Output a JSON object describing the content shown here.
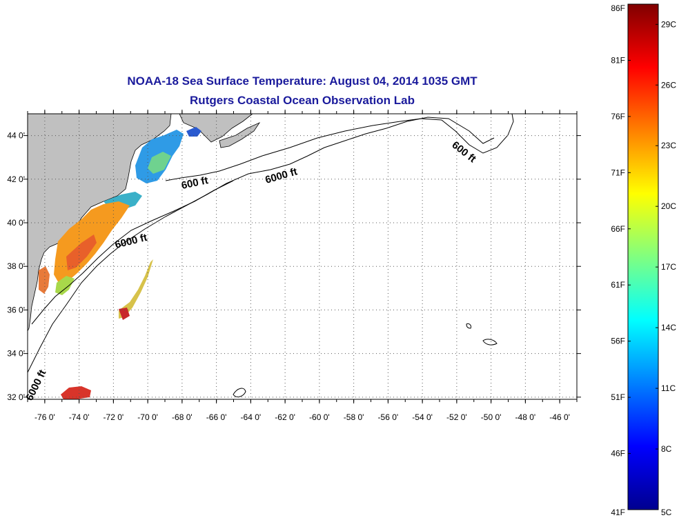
{
  "title": {
    "line1": "NOAA-18 Sea Surface Temperature:  August 04, 2014 1035 GMT",
    "line2": "Rutgers Coastal Ocean Observation Lab"
  },
  "map": {
    "lon_range": [
      -77,
      -45
    ],
    "lat_range": [
      31.9,
      45
    ],
    "lon_ticks": [
      -76,
      -74,
      -72,
      -70,
      -68,
      -66,
      -64,
      -62,
      -60,
      -58,
      -56,
      -54,
      -52,
      -50,
      -48,
      -46
    ],
    "lon_labels": [
      "-76 0'",
      "-74 0'",
      "-72 0'",
      "-70 0'",
      "-68 0'",
      "-66 0'",
      "-64 0'",
      "-62 0'",
      "-60 0'",
      "-58 0'",
      "-56 0'",
      "-54 0'",
      "-52 0'",
      "-50 0'",
      "-48 0'",
      "-46 0'"
    ],
    "lat_ticks": [
      32,
      34,
      36,
      38,
      40,
      42,
      44
    ],
    "lat_labels": [
      "32 0'",
      "34 0'",
      "36 0'",
      "38 0'",
      "40 0'",
      "42 0'",
      "44 0'"
    ],
    "grid": "dotted",
    "land_color": "#c0c0c0",
    "ocean_color": "#ffffff",
    "contour_labels": [
      "600 ft",
      "6000 ft",
      "6000 ft",
      "600 ft",
      "6000 ft"
    ]
  },
  "colorbar": {
    "range_f": [
      41,
      86
    ],
    "range_c": [
      5,
      30
    ],
    "f_labels": [
      "86F",
      "81F",
      "76F",
      "71F",
      "66F",
      "61F",
      "56F",
      "51F",
      "46F",
      "41F"
    ],
    "f_values": [
      86,
      81,
      76,
      71,
      66,
      61,
      56,
      51,
      46,
      41
    ],
    "c_labels": [
      "29C",
      "26C",
      "23C",
      "20C",
      "17C",
      "14C",
      "11C",
      "8C",
      "5C"
    ],
    "c_values": [
      29,
      26,
      23,
      20,
      17,
      14,
      11,
      8,
      5
    ],
    "gradient": [
      "#00008f",
      "#0000ff",
      "#0080ff",
      "#00ffff",
      "#80ff80",
      "#ffff00",
      "#ff8000",
      "#ff0000",
      "#800000"
    ]
  }
}
